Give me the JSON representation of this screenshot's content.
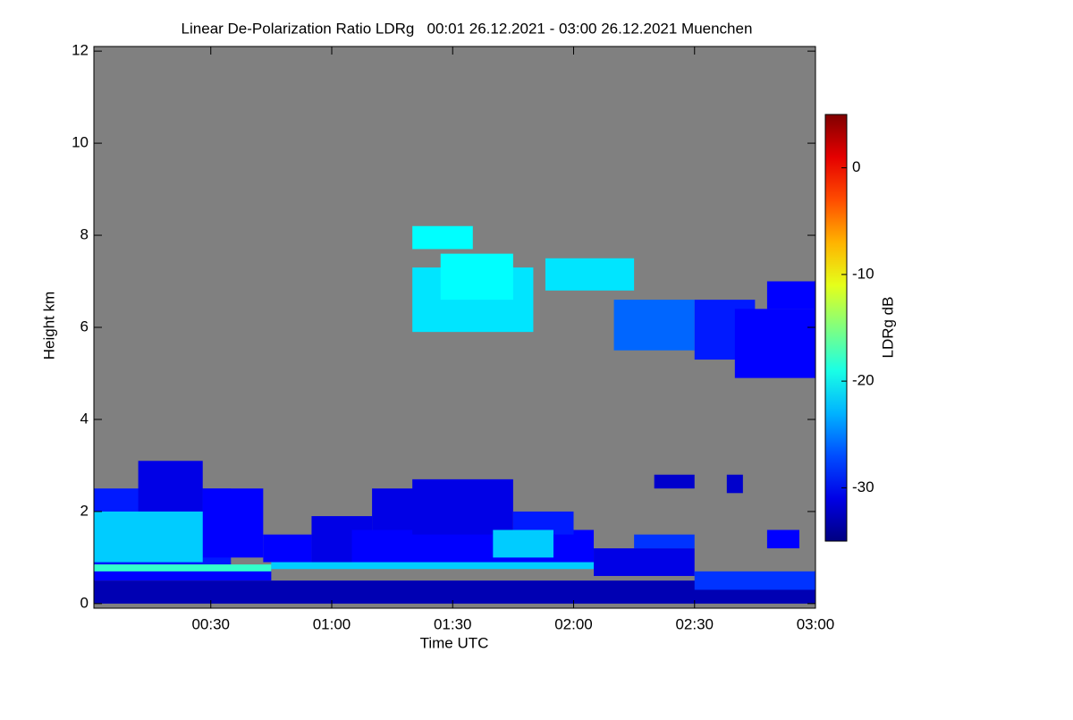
{
  "chart_data": {
    "type": "heatmap",
    "title": "Linear De-Polarization Ratio LDRg   00:01 26.12.2021 - 03:00 26.12.2021 Muenchen",
    "x_label": "Time UTC",
    "y_label": "Height km",
    "colorbar_label": "LDRg dB",
    "xlim": [
      1,
      180
    ],
    "xticks": [
      {
        "value": 30,
        "label": "00:30"
      },
      {
        "value": 60,
        "label": "01:00"
      },
      {
        "value": 90,
        "label": "01:30"
      },
      {
        "value": 120,
        "label": "02:00"
      },
      {
        "value": 150,
        "label": "02:30"
      },
      {
        "value": 180,
        "label": "03:00"
      }
    ],
    "ylim": [
      -0.1,
      12.1
    ],
    "yticks": [
      0,
      2,
      4,
      6,
      8,
      10,
      12
    ],
    "clim": [
      -35,
      5
    ],
    "cticks": [
      0,
      -10,
      -20,
      -30
    ],
    "colormap": "jet",
    "background_color": "#808080",
    "regions": [
      {
        "t": [
          1,
          180
        ],
        "h": [
          0,
          0.5
        ],
        "value": -33
      },
      {
        "t": [
          1,
          45
        ],
        "h": [
          0.5,
          0.75
        ],
        "value": -30
      },
      {
        "t": [
          1,
          35
        ],
        "h": [
          0.85,
          2.5
        ],
        "value": -29
      },
      {
        "t": [
          12,
          28
        ],
        "h": [
          2.0,
          3.1
        ],
        "value": -31
      },
      {
        "t": [
          28,
          43
        ],
        "h": [
          1.0,
          2.5
        ],
        "value": -30
      },
      {
        "t": [
          1,
          28
        ],
        "h": [
          0.9,
          2.0
        ],
        "value": -22
      },
      {
        "t": [
          1,
          45
        ],
        "h": [
          0.7,
          0.85
        ],
        "value": -18
      },
      {
        "t": [
          43,
          55
        ],
        "h": [
          0.9,
          1.5
        ],
        "value": -30
      },
      {
        "t": [
          55,
          70
        ],
        "h": [
          0.8,
          1.9
        ],
        "value": -31
      },
      {
        "t": [
          65,
          125
        ],
        "h": [
          0.8,
          1.6
        ],
        "value": -30
      },
      {
        "t": [
          70,
          85
        ],
        "h": [
          1.6,
          2.5
        ],
        "value": -31
      },
      {
        "t": [
          80,
          105
        ],
        "h": [
          1.5,
          2.7
        ],
        "value": -31
      },
      {
        "t": [
          105,
          120
        ],
        "h": [
          1.5,
          2.0
        ],
        "value": -29
      },
      {
        "t": [
          100,
          115
        ],
        "h": [
          1.0,
          1.6
        ],
        "value": -22
      },
      {
        "t": [
          45,
          125
        ],
        "h": [
          0.75,
          0.9
        ],
        "value": -22
      },
      {
        "t": [
          125,
          150
        ],
        "h": [
          0.6,
          1.2
        ],
        "value": -31
      },
      {
        "t": [
          135,
          150
        ],
        "h": [
          1.2,
          1.5
        ],
        "value": -28
      },
      {
        "t": [
          150,
          180
        ],
        "h": [
          0.3,
          0.7
        ],
        "value": -28
      },
      {
        "t": [
          168,
          176
        ],
        "h": [
          1.2,
          1.6
        ],
        "value": -30
      },
      {
        "t": [
          140,
          150
        ],
        "h": [
          2.5,
          2.8
        ],
        "value": -32
      },
      {
        "t": [
          158,
          162
        ],
        "h": [
          2.4,
          2.8
        ],
        "value": -32
      },
      {
        "t": [
          80,
          95
        ],
        "h": [
          7.7,
          8.2
        ],
        "value": -20
      },
      {
        "t": [
          80,
          110
        ],
        "h": [
          5.9,
          7.3
        ],
        "value": -21
      },
      {
        "t": [
          87,
          105
        ],
        "h": [
          6.6,
          7.6
        ],
        "value": -20
      },
      {
        "t": [
          113,
          135
        ],
        "h": [
          6.8,
          7.5
        ],
        "value": -21
      },
      {
        "t": [
          130,
          150
        ],
        "h": [
          5.5,
          6.6
        ],
        "value": -26
      },
      {
        "t": [
          150,
          165
        ],
        "h": [
          5.3,
          6.6
        ],
        "value": -29
      },
      {
        "t": [
          160,
          180
        ],
        "h": [
          4.9,
          6.4
        ],
        "value": -30
      },
      {
        "t": [
          168,
          180
        ],
        "h": [
          6.4,
          7.0
        ],
        "value": -30
      }
    ]
  }
}
